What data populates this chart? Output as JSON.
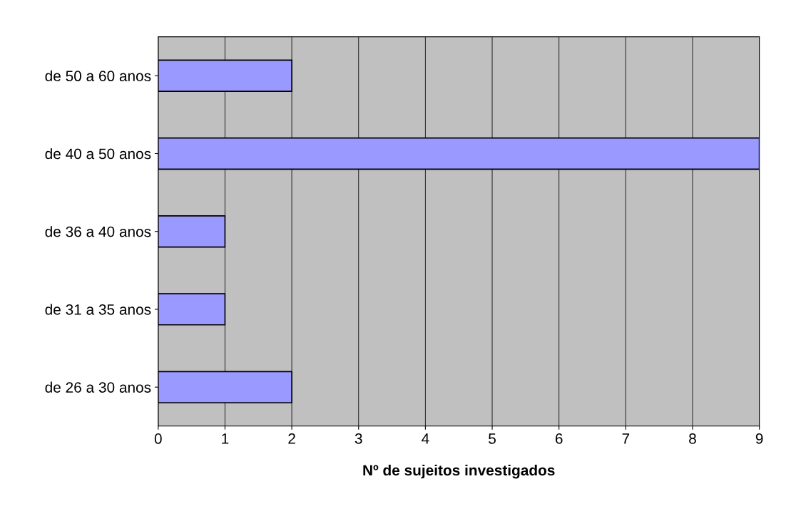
{
  "chart_data": {
    "type": "bar",
    "orientation": "horizontal",
    "xlabel": "Nº de sujeitos investigados",
    "categories": [
      "de 50 a 60 anos",
      "de 40 a 50 anos",
      "de 36 a 40 anos",
      "de 31 a 35 anos",
      "de 26 a 30 anos"
    ],
    "values": [
      2,
      9,
      1,
      1,
      2
    ],
    "color": "#9999ff",
    "xlim": [
      0,
      9
    ],
    "xticks": [
      0,
      1,
      2,
      3,
      4,
      5,
      6,
      7,
      8,
      9
    ],
    "grid": "x"
  }
}
